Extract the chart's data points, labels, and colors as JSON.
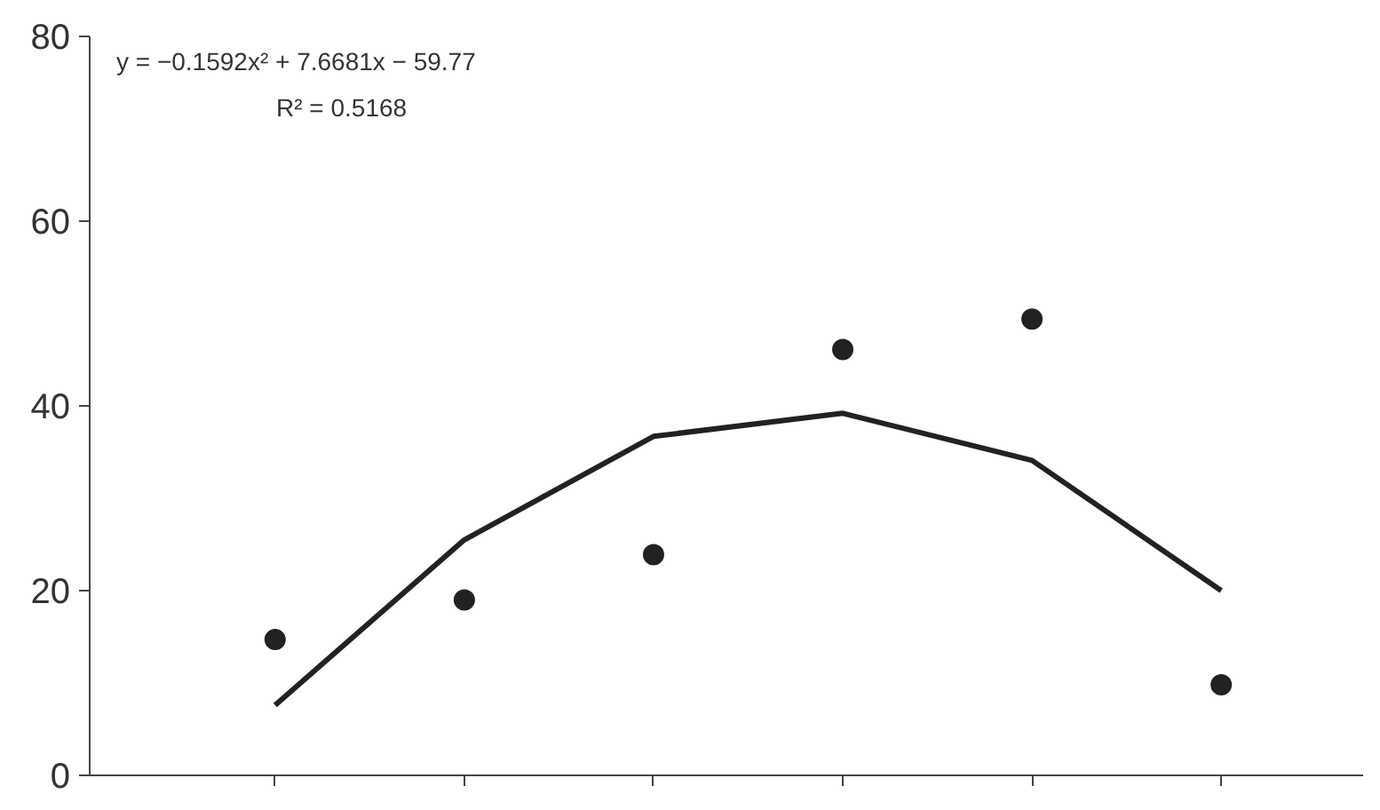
{
  "chart_data": {
    "type": "scatter",
    "categories": [
      null,
      null,
      null,
      null,
      null,
      null
    ],
    "series": [
      {
        "color": "#222222",
        "marker": "circle",
        "values": [
          14.7,
          19.0,
          23.9,
          46.1,
          49.4,
          9.8
        ]
      },
      {
        "type": "line",
        "color": "#222222",
        "line_style": "solid",
        "values": [
          7.6,
          25.5,
          36.7,
          39.2,
          34.1,
          20.0
        ]
      }
    ],
    "ylim": [
      0,
      80
    ],
    "yticks": [
      0,
      20,
      40,
      60,
      80
    ],
    "tick_labels": "y",
    "grid": false,
    "annotations": [
      "y = −0.1592x² + 7.6681x − 59.77",
      "R² = 0.5168"
    ]
  }
}
